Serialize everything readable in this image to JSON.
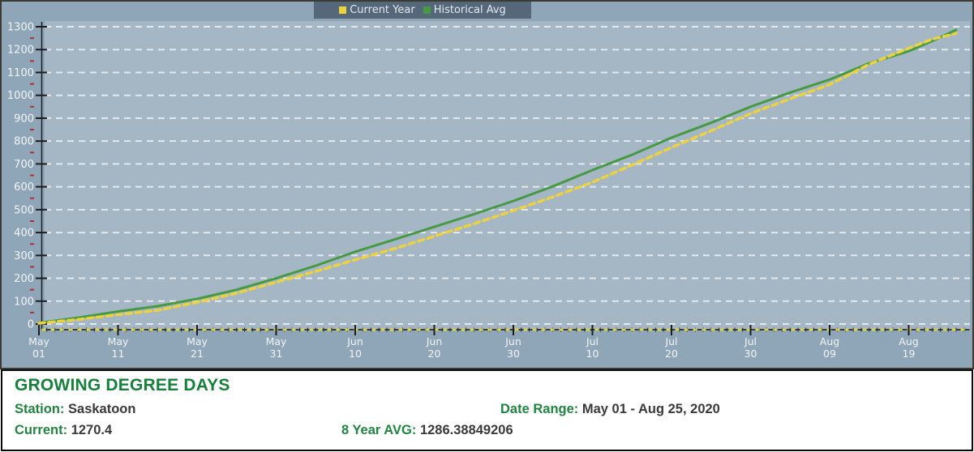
{
  "legend": {
    "items": [
      {
        "label": "Current Year",
        "color": "#ecd23f"
      },
      {
        "label": "Historical Avg",
        "color": "#459a43"
      }
    ]
  },
  "info_panel": {
    "title": "GROWING DEGREE DAYS",
    "station_label": "Station:",
    "station_value": "Saskatoon",
    "date_range_label": "Date Range:",
    "date_range_value": "May 01 - Aug 25, 2020",
    "current_label": "Current:",
    "current_value": "1270.4",
    "avg_label": "8 Year AVG:",
    "avg_value": "1286.38849206"
  },
  "chart_data": {
    "type": "line",
    "title": "Growing Degree Days — Saskatoon, May 01 - Aug 25, 2020",
    "x_axis": {
      "unit": "date",
      "tick_days": [
        0,
        10,
        20,
        30,
        40,
        50,
        60,
        70,
        80,
        90,
        100,
        110
      ],
      "tick_labels": [
        [
          "May",
          "01"
        ],
        [
          "May",
          "11"
        ],
        [
          "May",
          "21"
        ],
        [
          "May",
          "31"
        ],
        [
          "Jun",
          "10"
        ],
        [
          "Jun",
          "20"
        ],
        [
          "Jun",
          "30"
        ],
        [
          "Jul",
          "10"
        ],
        [
          "Jul",
          "20"
        ],
        [
          "Jul",
          "30"
        ],
        [
          "Aug",
          "09"
        ],
        [
          "Aug",
          "19"
        ]
      ],
      "total_days": 117
    },
    "y_axis": {
      "min": 0,
      "max": 1300,
      "major_step": 100,
      "minor_step": 50
    },
    "legend_position": "top-center",
    "grid": "horizontal-dashed",
    "series": [
      {
        "name": "Current Year",
        "color": "#ecd23f",
        "dash": true,
        "days": [
          0,
          5,
          10,
          15,
          20,
          25,
          30,
          35,
          40,
          45,
          50,
          55,
          60,
          65,
          70,
          75,
          80,
          85,
          90,
          95,
          100,
          105,
          110,
          113,
          116
        ],
        "values": [
          3,
          20,
          41,
          60,
          95,
          135,
          183,
          230,
          281,
          330,
          384,
          438,
          496,
          556,
          620,
          695,
          772,
          845,
          920,
          985,
          1047,
          1136,
          1206,
          1246,
          1270.4
        ]
      },
      {
        "name": "Historical Avg",
        "color": "#459a43",
        "dash": false,
        "days": [
          0,
          5,
          10,
          15,
          20,
          25,
          30,
          35,
          40,
          45,
          50,
          55,
          60,
          65,
          70,
          75,
          80,
          85,
          90,
          95,
          100,
          105,
          110,
          113,
          116
        ],
        "values": [
          5,
          28,
          55,
          78,
          110,
          150,
          200,
          255,
          316,
          370,
          425,
          480,
          538,
          602,
          673,
          740,
          815,
          880,
          950,
          1012,
          1069,
          1140,
          1193,
          1238,
          1286.4
        ]
      }
    ],
    "colors": {
      "outer_bg": "#8fa5b8",
      "plot_bg": "#a5b6c5",
      "grid": "#ffffff",
      "axis": "#1c1c1c",
      "y_minor_tick": "#aa3333",
      "day_tick": "#2a2a2a",
      "axis_overlay_dash": "#d6d44e",
      "label_text": "#f2f5f7"
    }
  }
}
